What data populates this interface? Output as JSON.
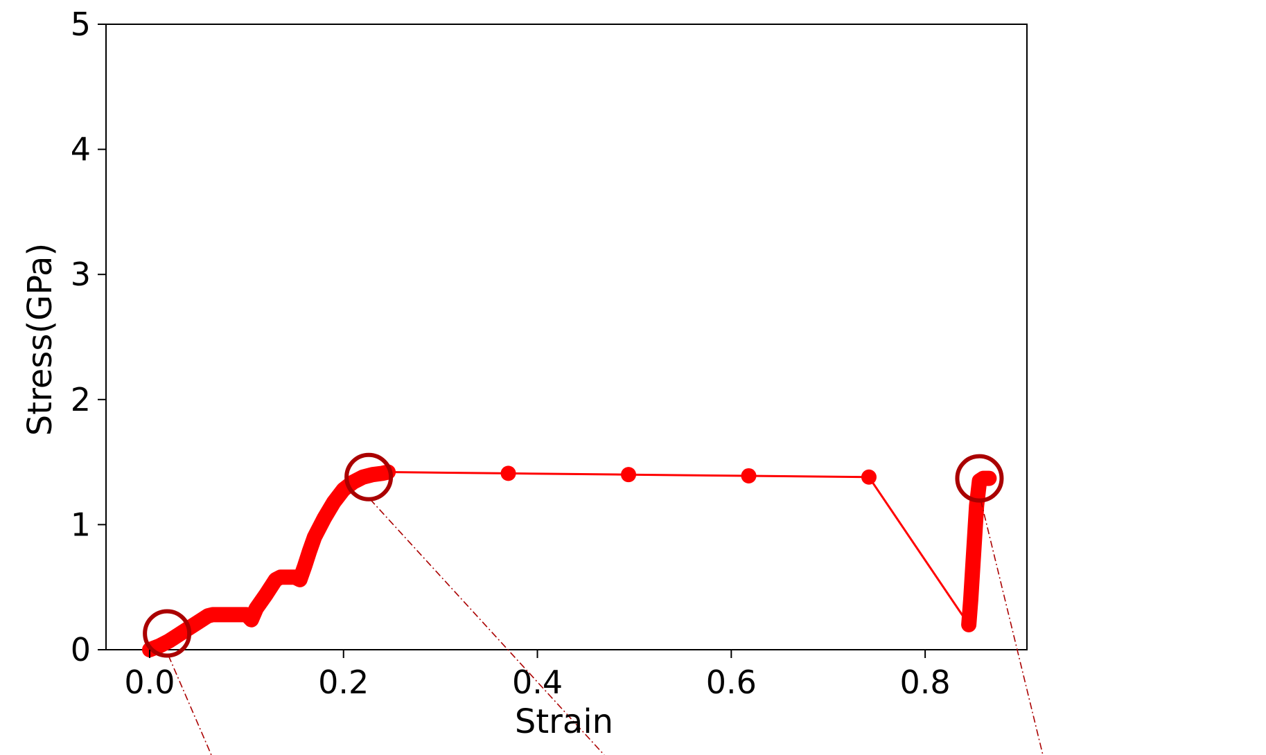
{
  "chart_data": {
    "type": "scatter",
    "title": "",
    "xlabel": "Strain",
    "ylabel": "Stress(GPa)",
    "xlim": [
      -0.045,
      0.905
    ],
    "ylim": [
      0,
      5
    ],
    "xticks": [
      0.0,
      0.2,
      0.4,
      0.6,
      0.8
    ],
    "xtick_labels": [
      "0.0",
      "0.2",
      "0.4",
      "0.6",
      "0.8"
    ],
    "yticks": [
      0,
      1,
      2,
      3,
      4,
      5
    ],
    "ytick_labels": [
      "0",
      "1",
      "2",
      "3",
      "4",
      "5"
    ],
    "grid": false,
    "legend": false,
    "line_color": "#ff0000",
    "highlight_color": "#aa0000",
    "series": [
      {
        "x": [
          0.0,
          0.01,
          0.02,
          0.03,
          0.04,
          0.05,
          0.06,
          0.065,
          0.07,
          0.08,
          0.09,
          0.1,
          0.105,
          0.11,
          0.12,
          0.13,
          0.135,
          0.14,
          0.15,
          0.155,
          0.16,
          0.165,
          0.17,
          0.18,
          0.19,
          0.2,
          0.21,
          0.22,
          0.23,
          0.24,
          0.246,
          0.37,
          0.494,
          0.618,
          0.742,
          0.845,
          0.847,
          0.849,
          0.851,
          0.853,
          0.856,
          0.86,
          0.866
        ],
        "y": [
          0.0,
          0.03,
          0.07,
          0.12,
          0.17,
          0.22,
          0.27,
          0.28,
          0.28,
          0.28,
          0.28,
          0.28,
          0.24,
          0.33,
          0.44,
          0.56,
          0.58,
          0.58,
          0.58,
          0.56,
          0.67,
          0.79,
          0.9,
          1.05,
          1.18,
          1.28,
          1.34,
          1.38,
          1.4,
          1.41,
          1.42,
          1.41,
          1.4,
          1.39,
          1.38,
          0.2,
          0.4,
          0.65,
          0.9,
          1.15,
          1.35,
          1.37,
          1.37
        ]
      }
    ],
    "markers": [
      {
        "x": 0.37,
        "y": 1.41
      },
      {
        "x": 0.494,
        "y": 1.4
      },
      {
        "x": 0.618,
        "y": 1.39
      },
      {
        "x": 0.742,
        "y": 1.38
      }
    ],
    "highlight_circles": [
      {
        "x": 0.018,
        "y": 0.13
      },
      {
        "x": 0.226,
        "y": 1.38
      },
      {
        "x": 0.856,
        "y": 1.37
      }
    ]
  }
}
